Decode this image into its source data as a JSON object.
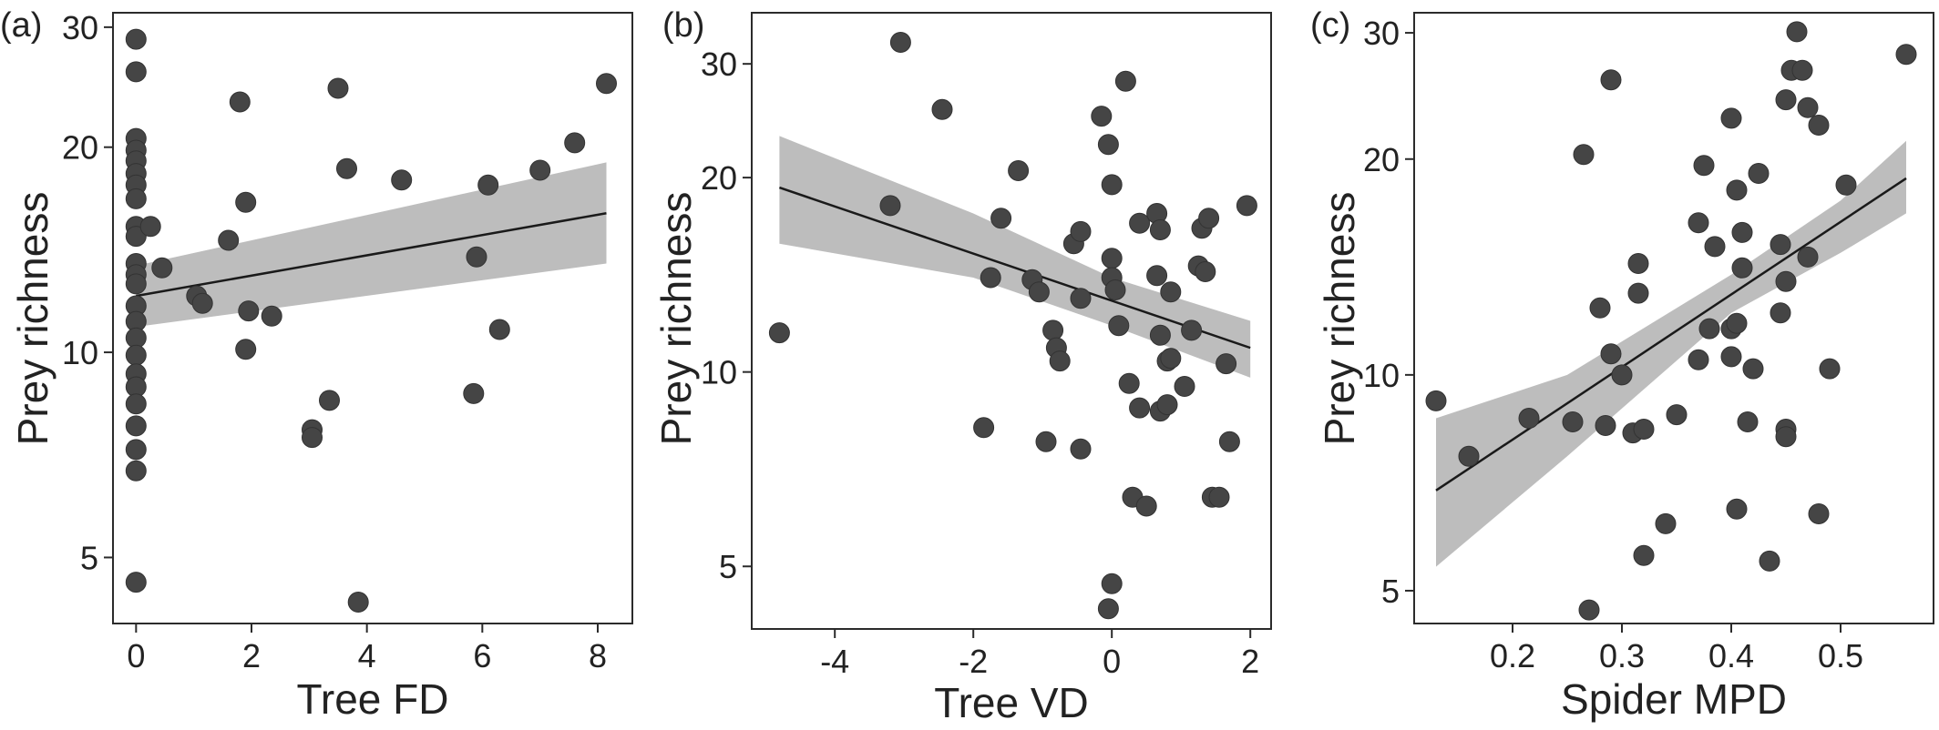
{
  "colors": {
    "point": "#454545",
    "band": "#bdbdbd",
    "line": "#1a1a1a",
    "axis": "#2b2b2b"
  },
  "chart_data": [
    {
      "type": "scatter",
      "panel_label": "(a)",
      "xlabel": "Tree FD",
      "ylabel": "Prey richness",
      "y_scale": "log",
      "xlim": [
        -0.4,
        8.6
      ],
      "ylim": [
        4.0,
        31.5
      ],
      "x_ticks": [
        0,
        2,
        4,
        6,
        8
      ],
      "x_tick_labels": [
        "0",
        "2",
        "4",
        "6",
        "8"
      ],
      "y_ticks": [
        5,
        10,
        20,
        30
      ],
      "y_tick_labels": [
        "5",
        "10",
        "20",
        "30"
      ],
      "grid": false,
      "points": [
        [
          0,
          28.8
        ],
        [
          0,
          25.8
        ],
        [
          0,
          20.6
        ],
        [
          0,
          19.8
        ],
        [
          0,
          19.1
        ],
        [
          0,
          18.3
        ],
        [
          0,
          17.6
        ],
        [
          0,
          16.8
        ],
        [
          0,
          15.3
        ],
        [
          0,
          14.8
        ],
        [
          0,
          13.5
        ],
        [
          0,
          13.0
        ],
        [
          0,
          12.6
        ],
        [
          0,
          11.7
        ],
        [
          0,
          11.1
        ],
        [
          0,
          10.5
        ],
        [
          0,
          9.9
        ],
        [
          0,
          9.3
        ],
        [
          0,
          8.9
        ],
        [
          0,
          8.4
        ],
        [
          0,
          7.8
        ],
        [
          0,
          7.2
        ],
        [
          0,
          6.7
        ],
        [
          0,
          4.6
        ],
        [
          0.25,
          15.3
        ],
        [
          0.45,
          13.3
        ],
        [
          1.05,
          12.1
        ],
        [
          1.15,
          11.8
        ],
        [
          1.6,
          14.6
        ],
        [
          1.8,
          23.3
        ],
        [
          1.9,
          16.6
        ],
        [
          1.95,
          11.5
        ],
        [
          1.9,
          10.1
        ],
        [
          2.35,
          11.3
        ],
        [
          3.05,
          7.7
        ],
        [
          3.05,
          7.5
        ],
        [
          3.35,
          8.5
        ],
        [
          3.5,
          24.4
        ],
        [
          3.65,
          18.6
        ],
        [
          3.85,
          4.3
        ],
        [
          4.6,
          17.9
        ],
        [
          5.85,
          8.7
        ],
        [
          5.9,
          13.8
        ],
        [
          6.1,
          17.6
        ],
        [
          6.3,
          10.8
        ],
        [
          7.0,
          18.5
        ],
        [
          7.6,
          20.3
        ],
        [
          8.15,
          24.8
        ]
      ],
      "fit": {
        "x": [
          0,
          8.15
        ],
        "y": [
          12.1,
          16.0
        ]
      },
      "ci_lower": {
        "x": [
          0,
          8.15
        ],
        "y": [
          10.9,
          13.5
        ]
      },
      "ci_upper": {
        "x": [
          0,
          8.15
        ],
        "y": [
          13.4,
          19.0
        ]
      }
    },
    {
      "type": "scatter",
      "panel_label": "(b)",
      "xlabel": "Tree VD",
      "ylabel": "Prey richness",
      "y_scale": "log",
      "xlim": [
        -5.2,
        2.3
      ],
      "ylim": [
        4.0,
        36.0
      ],
      "x_ticks": [
        -4,
        -2,
        0,
        2
      ],
      "x_tick_labels": [
        "-4",
        "-2",
        "0",
        "2"
      ],
      "y_ticks": [
        5,
        10,
        20,
        30
      ],
      "y_tick_labels": [
        "5",
        "10",
        "20",
        "30"
      ],
      "grid": false,
      "points": [
        [
          -4.8,
          11.5
        ],
        [
          -3.05,
          32.4
        ],
        [
          -3.2,
          18.1
        ],
        [
          -2.45,
          25.5
        ],
        [
          -1.85,
          8.2
        ],
        [
          -1.75,
          14.0
        ],
        [
          -1.6,
          17.3
        ],
        [
          -1.35,
          20.5
        ],
        [
          -1.15,
          13.9
        ],
        [
          -1.05,
          13.3
        ],
        [
          -0.95,
          7.8
        ],
        [
          -0.85,
          11.6
        ],
        [
          -0.8,
          10.9
        ],
        [
          -0.75,
          10.4
        ],
        [
          -0.55,
          15.8
        ],
        [
          -0.45,
          16.5
        ],
        [
          -0.45,
          13.0
        ],
        [
          -0.45,
          7.6
        ],
        [
          -0.15,
          24.9
        ],
        [
          -0.05,
          22.5
        ],
        [
          0.0,
          19.5
        ],
        [
          0.0,
          15.0
        ],
        [
          0.0,
          14.0
        ],
        [
          0.05,
          13.4
        ],
        [
          0.1,
          11.8
        ],
        [
          0.2,
          28.2
        ],
        [
          0.25,
          9.6
        ],
        [
          0.3,
          6.4
        ],
        [
          0.4,
          17.0
        ],
        [
          0.4,
          8.8
        ],
        [
          0.5,
          6.2
        ],
        [
          0.65,
          17.6
        ],
        [
          0.65,
          14.1
        ],
        [
          0.7,
          16.6
        ],
        [
          0.7,
          11.4
        ],
        [
          0.7,
          8.7
        ],
        [
          0.8,
          10.4
        ],
        [
          0.8,
          8.9
        ],
        [
          0.85,
          13.3
        ],
        [
          0.85,
          10.5
        ],
        [
          1.05,
          9.5
        ],
        [
          1.15,
          11.6
        ],
        [
          1.25,
          14.6
        ],
        [
          1.3,
          16.7
        ],
        [
          1.35,
          14.3
        ],
        [
          1.4,
          17.3
        ],
        [
          1.45,
          6.4
        ],
        [
          1.55,
          6.4
        ],
        [
          1.65,
          10.3
        ],
        [
          1.7,
          7.8
        ],
        [
          1.95,
          18.1
        ],
        [
          0.0,
          4.7
        ],
        [
          -0.05,
          4.3
        ]
      ],
      "fit": {
        "x": [
          -4.8,
          2.0
        ],
        "y": [
          19.3,
          10.9
        ]
      },
      "ci_lower": {
        "x": [
          -4.8,
          -2.0,
          0.0,
          2.0
        ],
        "y": [
          15.8,
          14.0,
          11.8,
          9.8
        ]
      },
      "ci_upper": {
        "x": [
          -4.8,
          -2.0,
          0.0,
          2.0
        ],
        "y": [
          23.2,
          17.6,
          14.0,
          12.0
        ]
      }
    },
    {
      "type": "scatter",
      "panel_label": "(c)",
      "xlabel": "Spider MPD",
      "ylabel": "Prey richness",
      "y_scale": "log",
      "xlim": [
        0.11,
        0.585
      ],
      "ylim": [
        4.5,
        32.0
      ],
      "x_ticks": [
        0.2,
        0.3,
        0.4,
        0.5
      ],
      "x_tick_labels": [
        "0.2",
        "0.3",
        "0.4",
        "0.5"
      ],
      "y_ticks": [
        5,
        10,
        20,
        30
      ],
      "y_tick_labels": [
        "5",
        "10",
        "20",
        "30"
      ],
      "grid": false,
      "points": [
        [
          0.13,
          9.2
        ],
        [
          0.16,
          7.7
        ],
        [
          0.215,
          8.7
        ],
        [
          0.255,
          8.6
        ],
        [
          0.265,
          20.3
        ],
        [
          0.27,
          4.7
        ],
        [
          0.28,
          12.4
        ],
        [
          0.285,
          8.5
        ],
        [
          0.29,
          25.8
        ],
        [
          0.29,
          10.7
        ],
        [
          0.3,
          10.0
        ],
        [
          0.31,
          8.3
        ],
        [
          0.315,
          14.3
        ],
        [
          0.315,
          13.0
        ],
        [
          0.32,
          5.6
        ],
        [
          0.32,
          8.4
        ],
        [
          0.34,
          6.2
        ],
        [
          0.35,
          8.8
        ],
        [
          0.37,
          10.5
        ],
        [
          0.37,
          16.3
        ],
        [
          0.375,
          19.6
        ],
        [
          0.38,
          11.6
        ],
        [
          0.385,
          15.1
        ],
        [
          0.4,
          11.6
        ],
        [
          0.4,
          10.6
        ],
        [
          0.4,
          22.8
        ],
        [
          0.405,
          11.8
        ],
        [
          0.405,
          6.5
        ],
        [
          0.405,
          18.1
        ],
        [
          0.41,
          14.1
        ],
        [
          0.41,
          15.8
        ],
        [
          0.415,
          8.6
        ],
        [
          0.42,
          10.2
        ],
        [
          0.425,
          19.1
        ],
        [
          0.435,
          5.5
        ],
        [
          0.445,
          15.2
        ],
        [
          0.445,
          12.2
        ],
        [
          0.45,
          13.5
        ],
        [
          0.45,
          8.4
        ],
        [
          0.45,
          8.2
        ],
        [
          0.45,
          24.2
        ],
        [
          0.455,
          26.6
        ],
        [
          0.465,
          26.6
        ],
        [
          0.46,
          30.1
        ],
        [
          0.47,
          23.6
        ],
        [
          0.47,
          14.6
        ],
        [
          0.48,
          22.3
        ],
        [
          0.48,
          6.4
        ],
        [
          0.49,
          10.2
        ],
        [
          0.505,
          18.4
        ],
        [
          0.56,
          28.0
        ]
      ],
      "fit": {
        "x": [
          0.13,
          0.56
        ],
        "y": [
          6.9,
          18.8
        ]
      },
      "ci_lower": {
        "x": [
          0.13,
          0.25,
          0.4,
          0.5,
          0.56
        ],
        "y": [
          5.4,
          7.7,
          12.2,
          14.8,
          16.8
        ]
      },
      "ci_upper": {
        "x": [
          0.13,
          0.25,
          0.4,
          0.5,
          0.56
        ],
        "y": [
          8.7,
          10.0,
          13.8,
          17.5,
          21.2
        ]
      }
    }
  ]
}
